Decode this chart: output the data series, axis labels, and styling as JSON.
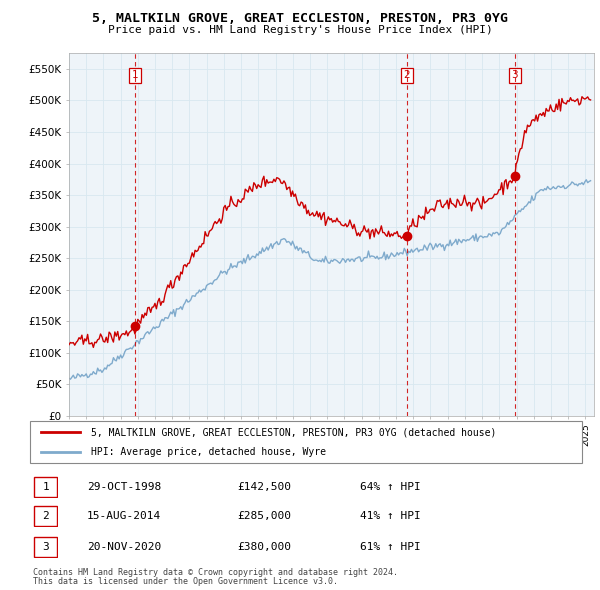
{
  "title": "5, MALTKILN GROVE, GREAT ECCLESTON, PRESTON, PR3 0YG",
  "subtitle": "Price paid vs. HM Land Registry's House Price Index (HPI)",
  "ylim": [
    0,
    575000
  ],
  "yticks": [
    0,
    50000,
    100000,
    150000,
    200000,
    250000,
    300000,
    350000,
    400000,
    450000,
    500000,
    550000
  ],
  "ytick_labels": [
    "£0",
    "£50K",
    "£100K",
    "£150K",
    "£200K",
    "£250K",
    "£300K",
    "£350K",
    "£400K",
    "£450K",
    "£500K",
    "£550K"
  ],
  "xlim_start": 1995.0,
  "xlim_end": 2025.5,
  "xtick_years": [
    1995,
    1996,
    1997,
    1998,
    1999,
    2000,
    2001,
    2002,
    2003,
    2004,
    2005,
    2006,
    2007,
    2008,
    2009,
    2010,
    2011,
    2012,
    2013,
    2014,
    2015,
    2016,
    2017,
    2018,
    2019,
    2020,
    2021,
    2022,
    2023,
    2024,
    2025
  ],
  "sale_color": "#cc0000",
  "hpi_color": "#7faacc",
  "vline_color": "#cc0000",
  "grid_color": "#d8e8f0",
  "bg_color": "#eef4f9",
  "purchases": [
    {
      "num": 1,
      "date_x": 1998.83,
      "price": 142500
    },
    {
      "num": 2,
      "date_x": 2014.62,
      "price": 285000
    },
    {
      "num": 3,
      "date_x": 2020.89,
      "price": 380000
    }
  ],
  "legend_sale_label": "5, MALTKILN GROVE, GREAT ECCLESTON, PRESTON, PR3 0YG (detached house)",
  "legend_hpi_label": "HPI: Average price, detached house, Wyre",
  "footer1": "Contains HM Land Registry data © Crown copyright and database right 2024.",
  "footer2": "This data is licensed under the Open Government Licence v3.0.",
  "table_rows": [
    {
      "num": 1,
      "date": "29-OCT-1998",
      "price": "£142,500",
      "change": "64% ↑ HPI"
    },
    {
      "num": 2,
      "date": "15-AUG-2014",
      "price": "£285,000",
      "change": "41% ↑ HPI"
    },
    {
      "num": 3,
      "date": "20-NOV-2020",
      "price": "£380,000",
      "change": "61% ↑ HPI"
    }
  ]
}
